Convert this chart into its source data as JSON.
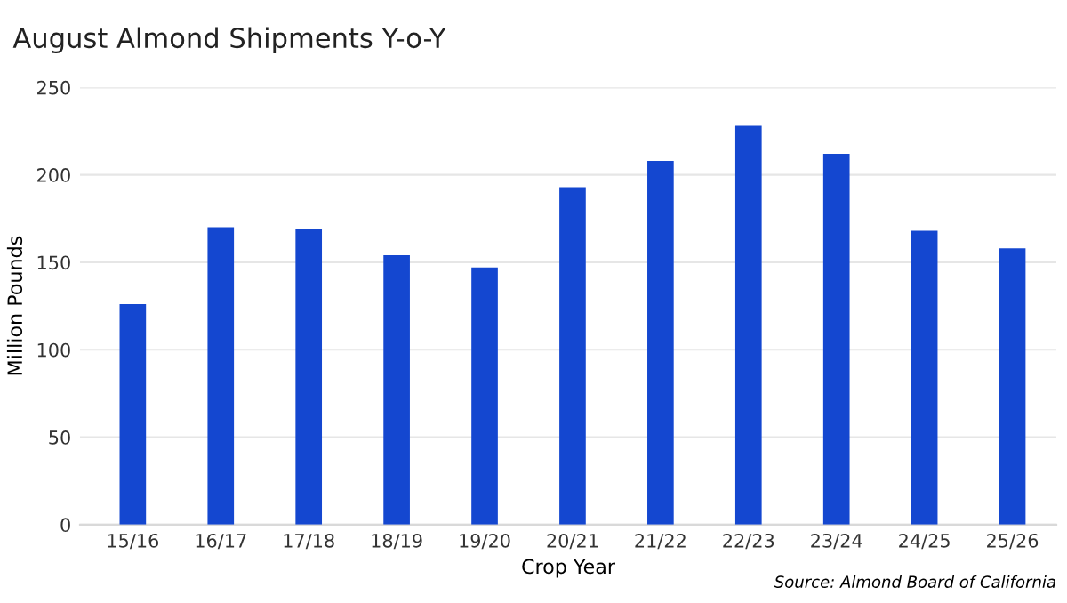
{
  "chart_data": {
    "type": "bar",
    "title": "August Almond Shipments Y-o-Y",
    "xlabel": "Crop Year",
    "ylabel": "Million Pounds",
    "categories": [
      "15/16",
      "16/17",
      "17/18",
      "18/19",
      "19/20",
      "20/21",
      "21/22",
      "22/23",
      "23/24",
      "24/25",
      "25/26"
    ],
    "values": [
      126,
      170,
      169,
      154,
      147,
      193,
      208,
      228,
      212,
      168,
      158
    ],
    "color": "#1447d0",
    "ylim": [
      0,
      250
    ],
    "yticks": [
      0,
      50,
      100,
      150,
      200,
      250
    ],
    "grid": "y",
    "annotations": [
      "Source: Almond Board of California"
    ]
  }
}
